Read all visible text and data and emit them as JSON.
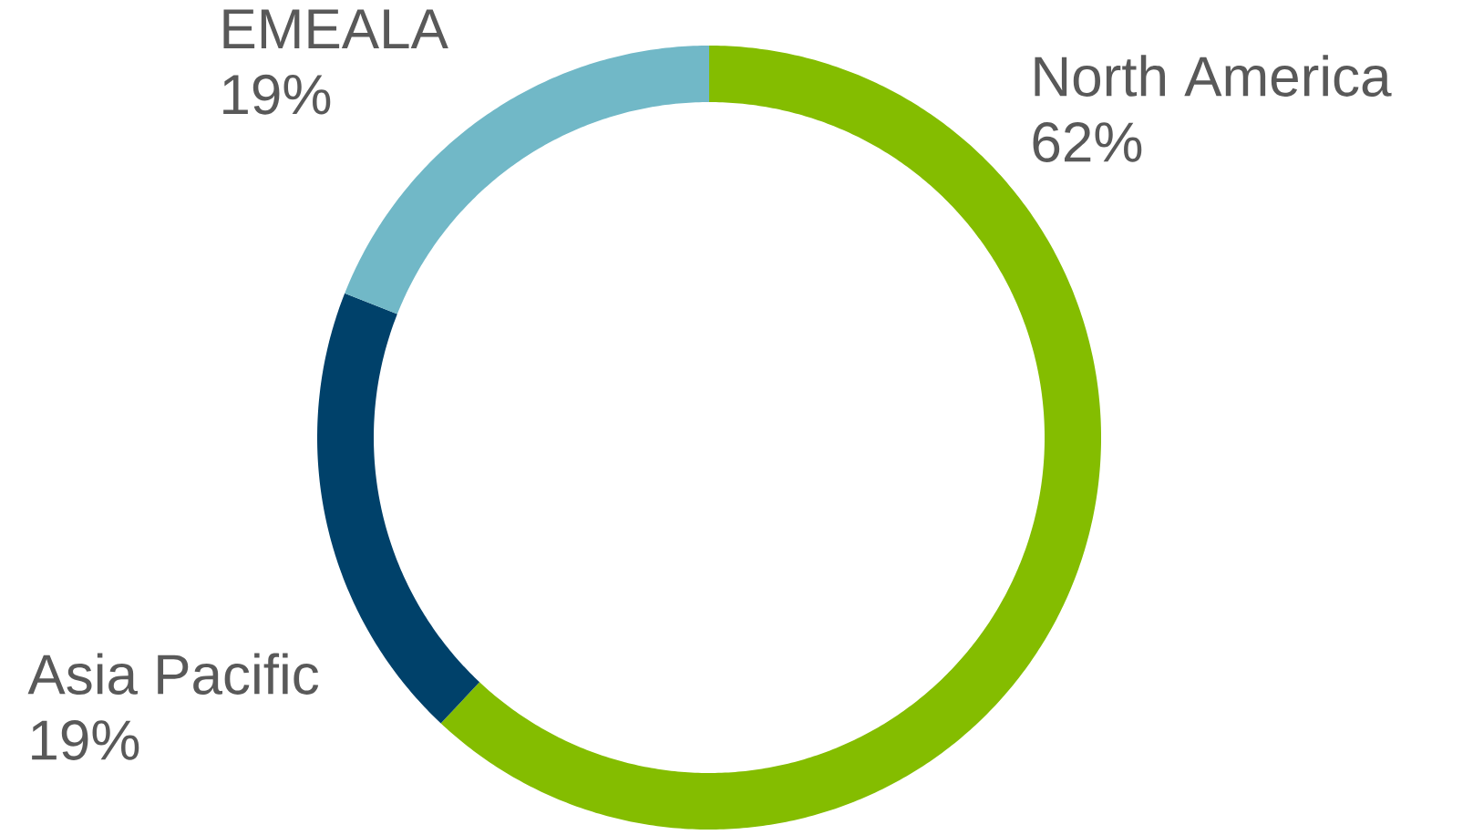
{
  "chart_data": {
    "type": "donut",
    "categories": [
      "North America",
      "Asia Pacific",
      "EMEALA"
    ],
    "values": [
      62,
      19,
      19
    ],
    "value_labels": [
      "62%",
      "19%",
      "19%"
    ],
    "colors": [
      "#84bd00",
      "#00416a",
      "#71b8c7"
    ]
  }
}
